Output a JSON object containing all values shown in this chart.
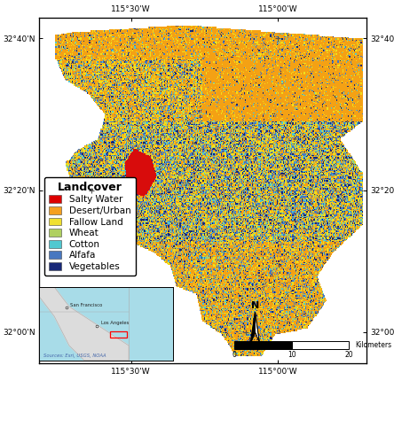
{
  "legend_title": "Landcover",
  "legend_items": [
    {
      "label": "Salty Water",
      "color": "#dd0000"
    },
    {
      "label": "Desert/Urban",
      "color": "#f5a020"
    },
    {
      "label": "Fallow Land",
      "color": "#f0e030"
    },
    {
      "label": "Wheat",
      "color": "#b0d060"
    },
    {
      "label": "Cotton",
      "color": "#50c8d0"
    },
    {
      "label": "Alfafa",
      "color": "#4878c0"
    },
    {
      "label": "Vegetables",
      "color": "#182878"
    }
  ],
  "xtick_labels_bottom": [
    "115°30'W",
    "115°00'W"
  ],
  "xtick_labels_top": [
    "115°30'W",
    "115°00'W"
  ],
  "ytick_labels_left": [
    "32°40'N",
    "32°20'N",
    "32°00'N"
  ],
  "ytick_labels_right": [
    "32°40'N",
    "32°20'N",
    "32°00'N"
  ],
  "background_color": "#ffffff",
  "border_color": "#000000",
  "legend_fontsize": 7.5,
  "legend_title_fontsize": 9,
  "tick_fontsize": 6.5,
  "inset_source": "Sources: Esri, USGS, NOAA"
}
